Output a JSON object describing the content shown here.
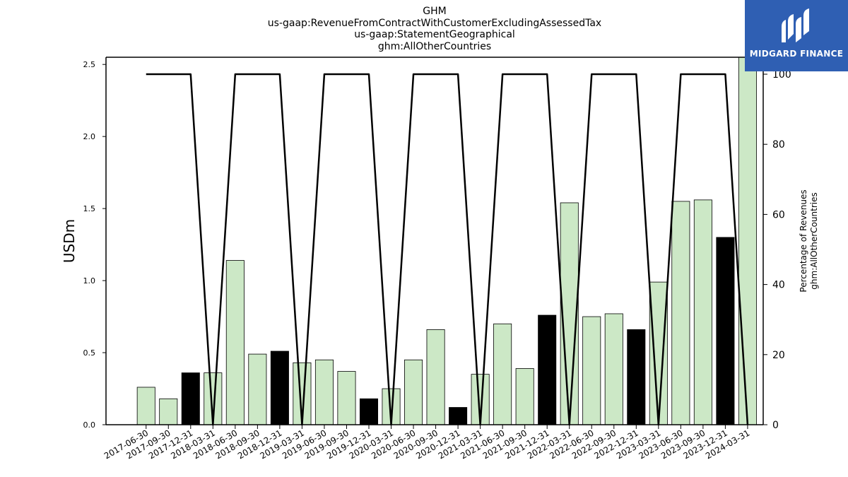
{
  "chart_data": {
    "type": "bar",
    "title": [
      "GHM",
      "us-gaap:RevenueFromContractWithCustomerExcludingAssessedTax",
      "us-gaap:StatementGeographical",
      "ghm:AllOtherCountries"
    ],
    "ylabel": "USDm",
    "y2label": [
      "Percentage of Revenues",
      "ghm:AllOtherCountries"
    ],
    "ylim": [
      0,
      2.55
    ],
    "y2lim": [
      0,
      100
    ],
    "yticks": [
      "0.0",
      "0.5",
      "1.0",
      "1.5",
      "2.0",
      "2.5"
    ],
    "y2ticks": [
      "0",
      "20",
      "40",
      "60",
      "80",
      "100"
    ],
    "categories": [
      "2017-06-30",
      "2017-09-30",
      "2017-12-31",
      "2018-03-31",
      "2018-06-30",
      "2018-09-30",
      "2018-12-31",
      "2019-03-31",
      "2019-06-30",
      "2019-09-30",
      "2019-12-31",
      "2020-03-31",
      "2020-06-30",
      "2020-09-30",
      "2020-12-31",
      "2021-03-31",
      "2021-06-30",
      "2021-09-30",
      "2021-12-31",
      "2022-03-31",
      "2022-06-30",
      "2022-09-30",
      "2022-12-31",
      "2023-03-31",
      "2023-06-30",
      "2023-09-30",
      "2023-12-31",
      "2024-03-31"
    ],
    "series": [
      {
        "values": [
          0.26,
          0.18,
          0.36,
          0.36,
          1.14,
          0.49,
          0.51,
          0.43,
          0.45,
          0.37,
          0.18,
          0.25,
          0.45,
          0.66,
          0.12,
          0.35,
          0.7,
          0.39,
          0.76,
          1.54,
          0.75,
          0.77,
          0.66,
          0.99,
          1.55,
          1.56,
          1.3,
          2.55
        ],
        "bar_colors": [
          "#cce8c6",
          "#cce8c6",
          "#000000",
          "#cce8c6",
          "#cce8c6",
          "#cce8c6",
          "#000000",
          "#cce8c6",
          "#cce8c6",
          "#cce8c6",
          "#000000",
          "#cce8c6",
          "#cce8c6",
          "#cce8c6",
          "#000000",
          "#cce8c6",
          "#cce8c6",
          "#cce8c6",
          "#000000",
          "#cce8c6",
          "#cce8c6",
          "#cce8c6",
          "#000000",
          "#cce8c6",
          "#cce8c6",
          "#cce8c6",
          "#000000",
          "#cce8c6"
        ]
      },
      {
        "type": "line",
        "axis": "right",
        "color": "#000000",
        "values": [
          100,
          100,
          100,
          0,
          100,
          100,
          100,
          0,
          100,
          100,
          100,
          0,
          100,
          100,
          100,
          0,
          100,
          100,
          100,
          0,
          100,
          100,
          100,
          0,
          100,
          100,
          100,
          0
        ]
      }
    ],
    "grid": false
  },
  "logo": {
    "text": "MIDGARD FINANCE",
    "color": "#2f5fb3"
  }
}
